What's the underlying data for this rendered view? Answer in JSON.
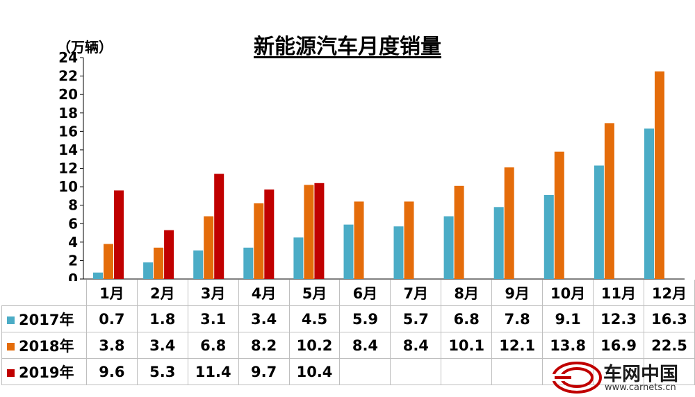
{
  "chart_data": {
    "type": "bar",
    "title": "新能源汽车月度销量",
    "ylabel": "（万辆）",
    "ylim": [
      0,
      24
    ],
    "yticks": [
      0,
      2,
      4,
      6,
      8,
      10,
      12,
      14,
      16,
      18,
      20,
      22,
      24
    ],
    "categories": [
      "1月",
      "2月",
      "3月",
      "4月",
      "5月",
      "6月",
      "7月",
      "8月",
      "9月",
      "10月",
      "11月",
      "12月"
    ],
    "series": [
      {
        "name": "2017年",
        "color": "#4bacc6",
        "values": [
          0.7,
          1.8,
          3.1,
          3.4,
          4.5,
          5.9,
          5.7,
          6.8,
          7.8,
          9.1,
          12.3,
          16.3
        ]
      },
      {
        "name": "2018年",
        "color": "#e46c0a",
        "values": [
          3.8,
          3.4,
          6.8,
          8.2,
          10.2,
          8.4,
          8.4,
          10.1,
          12.1,
          13.8,
          16.9,
          22.5
        ]
      },
      {
        "name": "2019年",
        "color": "#c00000",
        "values": [
          9.6,
          5.3,
          11.4,
          9.7,
          10.4,
          null,
          null,
          null,
          null,
          null,
          null,
          null
        ]
      }
    ],
    "grid": false,
    "legend": "data-table"
  },
  "watermark": {
    "name": "车网中国",
    "url": "www.carnets.cn"
  }
}
